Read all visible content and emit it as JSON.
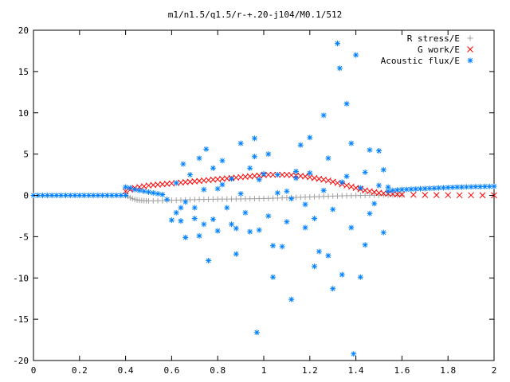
{
  "chart_data": {
    "type": "scatter",
    "title": "m1/n1.5/q1.5/r-+.20-j104/M0.1/512",
    "xlabel": "",
    "ylabel": "",
    "xlim": [
      0,
      2
    ],
    "ylim": [
      -20,
      20
    ],
    "xticks": [
      "0",
      "0.2",
      "0.4",
      "0.6",
      "0.8",
      "1",
      "1.2",
      "1.4",
      "1.6",
      "1.8",
      "2"
    ],
    "yticks": [
      "-20",
      "-15",
      "-10",
      "-5",
      "0",
      "5",
      "10",
      "15",
      "20"
    ],
    "legend_position": "top-right",
    "grid": false,
    "series": [
      {
        "name": "R stress/E",
        "marker": "+",
        "color": "#a0a0a0",
        "x": [
          0.4,
          0.41,
          0.42,
          0.43,
          0.44,
          0.45,
          0.46,
          0.47,
          0.48,
          0.49,
          0.5,
          0.52,
          0.54,
          0.56,
          0.58,
          0.6,
          0.62,
          0.64,
          0.66,
          0.68,
          0.7,
          0.72,
          0.74,
          0.76,
          0.78,
          0.8,
          0.82,
          0.84,
          0.86,
          0.88,
          0.9,
          0.92,
          0.94,
          0.96,
          0.98,
          1.0,
          1.02,
          1.04,
          1.06,
          1.08,
          1.1,
          1.12,
          1.14,
          1.16,
          1.18,
          1.2,
          1.22,
          1.24,
          1.26,
          1.28,
          1.3,
          1.32,
          1.34,
          1.36,
          1.38,
          1.4,
          1.42,
          1.44,
          1.46,
          1.48,
          1.5,
          1.52,
          1.54,
          1.56,
          1.58,
          1.6
        ],
        "y": [
          0.2,
          -0.1,
          -0.3,
          -0.4,
          -0.5,
          -0.55,
          -0.6,
          -0.62,
          -0.64,
          -0.65,
          -0.66,
          -0.66,
          -0.65,
          -0.64,
          -0.62,
          -0.6,
          -0.58,
          -0.56,
          -0.55,
          -0.53,
          -0.52,
          -0.5,
          -0.49,
          -0.48,
          -0.47,
          -0.46,
          -0.45,
          -0.45,
          -0.44,
          -0.44,
          -0.43,
          -0.42,
          -0.41,
          -0.4,
          -0.39,
          -0.38,
          -0.37,
          -0.35,
          -0.33,
          -0.31,
          -0.29,
          -0.27,
          -0.25,
          -0.23,
          -0.21,
          -0.19,
          -0.17,
          -0.15,
          -0.13,
          -0.11,
          -0.09,
          -0.07,
          -0.05,
          -0.04,
          -0.03,
          -0.02,
          -0.01,
          0.0,
          0.01,
          0.01,
          0.02,
          0.02,
          0.02,
          0.03,
          0.03,
          0.03
        ]
      },
      {
        "name": "G work/E",
        "marker": "x",
        "color": "#ff0000",
        "x": [
          0.4,
          0.42,
          0.44,
          0.46,
          0.48,
          0.5,
          0.52,
          0.54,
          0.56,
          0.58,
          0.6,
          0.62,
          0.64,
          0.66,
          0.68,
          0.7,
          0.72,
          0.74,
          0.76,
          0.78,
          0.8,
          0.82,
          0.84,
          0.86,
          0.88,
          0.9,
          0.92,
          0.94,
          0.96,
          0.98,
          1.0,
          1.02,
          1.04,
          1.06,
          1.08,
          1.1,
          1.12,
          1.14,
          1.16,
          1.18,
          1.2,
          1.22,
          1.24,
          1.26,
          1.28,
          1.3,
          1.32,
          1.34,
          1.36,
          1.38,
          1.4,
          1.42,
          1.44,
          1.46,
          1.48,
          1.5,
          1.52,
          1.54,
          1.56,
          1.58,
          1.6,
          1.65,
          1.7,
          1.75,
          1.8,
          1.85,
          1.9,
          1.95,
          2.0
        ],
        "y": [
          0.5,
          0.7,
          0.9,
          1.0,
          1.1,
          1.2,
          1.25,
          1.3,
          1.35,
          1.4,
          1.45,
          1.5,
          1.55,
          1.6,
          1.65,
          1.7,
          1.75,
          1.8,
          1.85,
          1.9,
          1.95,
          2.0,
          2.05,
          2.1,
          2.15,
          2.2,
          2.25,
          2.3,
          2.35,
          2.4,
          2.45,
          2.5,
          2.5,
          2.5,
          2.5,
          2.5,
          2.45,
          2.4,
          2.35,
          2.3,
          2.2,
          2.1,
          2.0,
          1.9,
          1.8,
          1.65,
          1.5,
          1.35,
          1.2,
          1.05,
          0.9,
          0.75,
          0.6,
          0.5,
          0.4,
          0.3,
          0.25,
          0.2,
          0.15,
          0.12,
          0.1,
          0.07,
          0.05,
          0.04,
          0.03,
          0.02,
          0.02,
          0.01,
          0.01
        ]
      },
      {
        "name": "Acoustic flux/E",
        "marker": "*",
        "color": "#0080ff",
        "baseline_x": [
          0.0,
          0.02,
          0.04,
          0.06,
          0.08,
          0.1,
          0.12,
          0.14,
          0.16,
          0.18,
          0.2,
          0.22,
          0.24,
          0.26,
          0.28,
          0.3,
          0.32,
          0.34,
          0.36,
          0.38,
          0.4
        ],
        "baseline_y": [
          0,
          0,
          0,
          0,
          0,
          0,
          0,
          0,
          0,
          0,
          0,
          0,
          0,
          0,
          0,
          0,
          0,
          0,
          0,
          0,
          0
        ],
        "transition_x": [
          0.4,
          0.42,
          0.44,
          0.46,
          0.48,
          0.5,
          0.52,
          0.54,
          0.56
        ],
        "transition_y": [
          1.0,
          0.9,
          0.7,
          0.6,
          0.5,
          0.4,
          0.3,
          0.2,
          0.1
        ],
        "outer_x": [
          1.54,
          1.56,
          1.58,
          1.6,
          1.62,
          1.64,
          1.66,
          1.68,
          1.7,
          1.72,
          1.74,
          1.76,
          1.78,
          1.8,
          1.82,
          1.84,
          1.86,
          1.88,
          1.9,
          1.92,
          1.94,
          1.96,
          1.98,
          2.0
        ],
        "outer_y": [
          0.5,
          0.6,
          0.65,
          0.7,
          0.72,
          0.75,
          0.77,
          0.8,
          0.82,
          0.85,
          0.87,
          0.9,
          0.92,
          0.95,
          0.97,
          1.0,
          1.0,
          1.02,
          1.03,
          1.05,
          1.05,
          1.07,
          1.08,
          1.1
        ],
        "scatter_x": [
          0.58,
          0.6,
          0.62,
          0.64,
          0.65,
          0.66,
          0.68,
          0.7,
          0.72,
          0.74,
          0.75,
          0.76,
          0.78,
          0.8,
          0.82,
          0.84,
          0.86,
          0.88,
          0.9,
          0.92,
          0.94,
          0.96,
          0.97,
          0.98,
          1.0,
          1.02,
          1.04,
          1.06,
          1.08,
          1.1,
          1.12,
          1.14,
          1.16,
          1.18,
          1.2,
          1.22,
          1.24,
          1.26,
          1.28,
          1.3,
          1.32,
          1.33,
          1.34,
          1.36,
          1.38,
          1.39,
          1.4,
          1.42,
          1.44,
          1.46,
          1.48,
          1.5,
          1.52,
          1.54,
          0.62,
          0.66,
          0.7,
          0.74,
          0.78,
          0.82,
          0.86,
          0.9,
          0.94,
          0.98,
          1.02,
          1.06,
          1.1,
          1.14,
          1.18,
          1.22,
          1.26,
          1.3,
          1.34,
          1.38,
          1.42,
          1.46,
          1.5,
          0.64,
          0.72,
          0.8,
          0.88,
          0.96,
          1.04,
          1.12,
          1.2,
          1.28,
          1.36,
          1.44,
          1.52
        ],
        "scatter_y": [
          -0.5,
          -3.0,
          1.5,
          -1.5,
          3.8,
          -5.1,
          2.5,
          -2.8,
          4.5,
          -3.5,
          5.6,
          -7.9,
          3.3,
          -4.3,
          4.2,
          -1.5,
          2.0,
          -7.1,
          6.3,
          -2.1,
          3.3,
          6.9,
          -16.6,
          -4.2,
          2.6,
          5.0,
          -9.9,
          2.5,
          -6.2,
          0.5,
          -12.6,
          2.9,
          6.1,
          -3.9,
          7.0,
          -8.6,
          -6.8,
          9.7,
          4.5,
          -11.3,
          18.4,
          15.4,
          -9.6,
          11.1,
          6.3,
          -19.2,
          17.0,
          -9.9,
          2.8,
          5.5,
          -1.0,
          5.4,
          -4.5,
          1.0,
          -2.1,
          -0.8,
          -1.5,
          0.7,
          -2.9,
          1.3,
          -3.5,
          0.2,
          -4.4,
          1.9,
          -2.5,
          0.3,
          -3.2,
          2.1,
          -1.1,
          -2.8,
          0.6,
          -1.7,
          1.6,
          -3.9,
          0.9,
          -2.2,
          1.2,
          -3.1,
          -4.9,
          0.8,
          -4.0,
          4.7,
          -6.1,
          -0.4,
          2.7,
          -7.3,
          2.3,
          -6.0,
          3.1
        ]
      }
    ]
  }
}
